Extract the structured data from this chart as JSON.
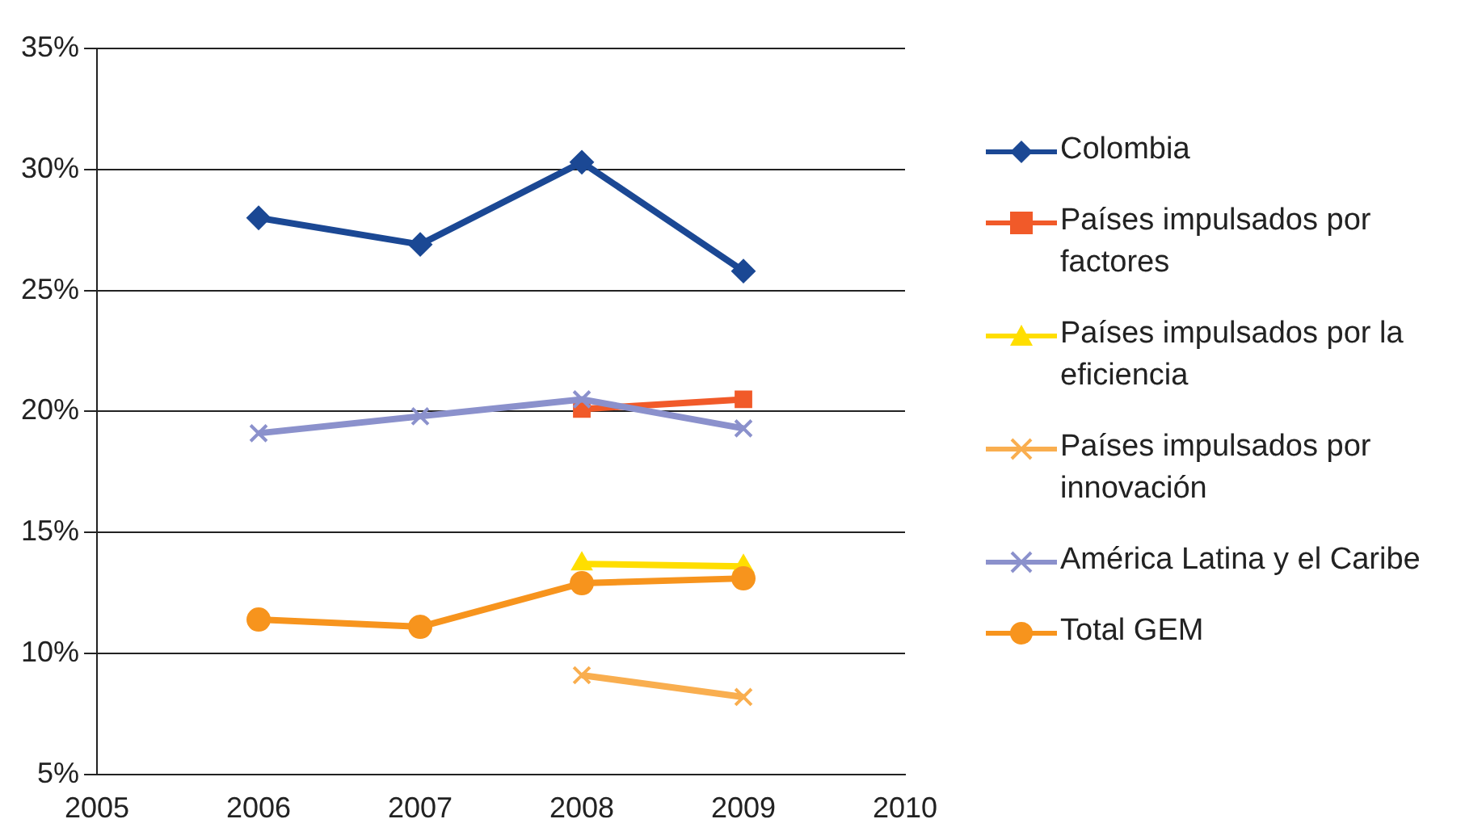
{
  "chart_data": {
    "type": "line",
    "x": [
      2006,
      2007,
      2008,
      2009
    ],
    "series": [
      {
        "name": "Colombia",
        "color": "#1b4894",
        "marker": "diamond",
        "values": [
          28.0,
          26.9,
          30.3,
          25.8
        ]
      },
      {
        "name": "Países impulsados  por factores",
        "color": "#f15a29",
        "marker": "square",
        "values": [
          null,
          null,
          20.1,
          20.5
        ]
      },
      {
        "name": "Países impulsados  por la eficiencia",
        "color": "#ffde00",
        "marker": "triangle",
        "values": [
          null,
          null,
          13.7,
          13.6
        ]
      },
      {
        "name": "Países impulsados  por innovación",
        "color": "#f9ae4f",
        "marker": "cross",
        "values": [
          null,
          null,
          9.1,
          8.2
        ]
      },
      {
        "name": "América Latina  y el Caribe",
        "color": "#8b91cc",
        "marker": "cross",
        "values": [
          19.1,
          19.8,
          20.5,
          19.3
        ]
      },
      {
        "name": "Total GEM",
        "color": "#f7941d",
        "marker": "circle",
        "values": [
          11.4,
          11.1,
          12.9,
          13.1
        ]
      }
    ],
    "xlim": [
      2005,
      2010
    ],
    "xticks": [
      2005,
      2006,
      2007,
      2008,
      2009,
      2010
    ],
    "ylim": [
      5,
      35
    ],
    "yticks": [
      {
        "value": 5,
        "label": "5%"
      },
      {
        "value": 10,
        "label": "10%"
      },
      {
        "value": 15,
        "label": "15%"
      },
      {
        "value": 20,
        "label": "20%"
      },
      {
        "value": 25,
        "label": "25%"
      },
      {
        "value": 30,
        "label": "30%"
      },
      {
        "value": 35,
        "label": "35%"
      }
    ],
    "grid": "y",
    "legend": "right"
  }
}
